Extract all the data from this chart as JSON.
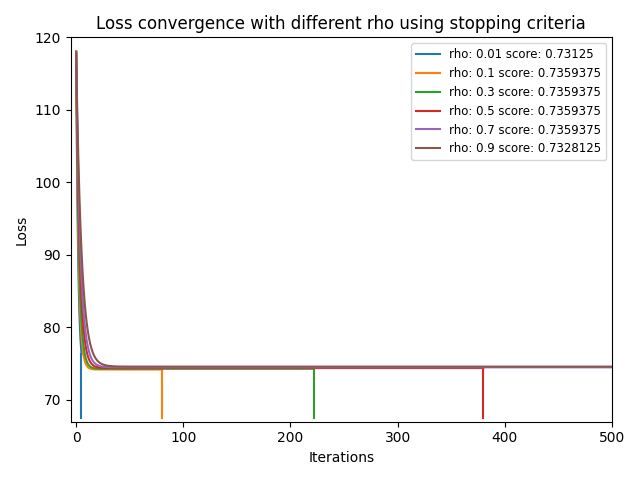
{
  "title": "Loss convergence with different rho using stopping criteria",
  "xlabel": "Iterations",
  "ylabel": "Loss",
  "ylim": [
    67,
    120
  ],
  "xlim": [
    -5,
    500
  ],
  "series": [
    {
      "rho": 0.01,
      "color": "#1f77b4",
      "label": "rho: 0.01 score: 0.73125",
      "stop_iter": 5,
      "start_loss": 118.0,
      "plateau_loss": 73.5,
      "decay": 0.55
    },
    {
      "rho": 0.1,
      "color": "#ff7f0e",
      "label": "rho: 0.1 score: 0.7359375",
      "stop_iter": 80,
      "start_loss": 118.0,
      "plateau_loss": 74.2,
      "decay": 0.45
    },
    {
      "rho": 0.3,
      "color": "#2ca02c",
      "label": "rho: 0.3 score: 0.7359375",
      "stop_iter": 222,
      "start_loss": 118.0,
      "plateau_loss": 74.3,
      "decay": 0.38
    },
    {
      "rho": 0.5,
      "color": "#d62728",
      "label": "rho: 0.5 score: 0.7359375",
      "stop_iter": 380,
      "start_loss": 118.0,
      "plateau_loss": 74.4,
      "decay": 0.3
    },
    {
      "rho": 0.7,
      "color": "#9467bd",
      "label": "rho: 0.7 score: 0.7359375",
      "stop_iter": 500,
      "start_loss": 118.0,
      "plateau_loss": 74.5,
      "decay": 0.25
    },
    {
      "rho": 0.9,
      "color": "#8c564b",
      "label": "rho: 0.9 score: 0.7328125",
      "stop_iter": 500,
      "start_loss": 118.0,
      "plateau_loss": 74.6,
      "decay": 0.2
    }
  ],
  "max_iter": 500,
  "drop_bottom": 67.5,
  "figsize": [
    6.4,
    4.8
  ],
  "dpi": 100
}
